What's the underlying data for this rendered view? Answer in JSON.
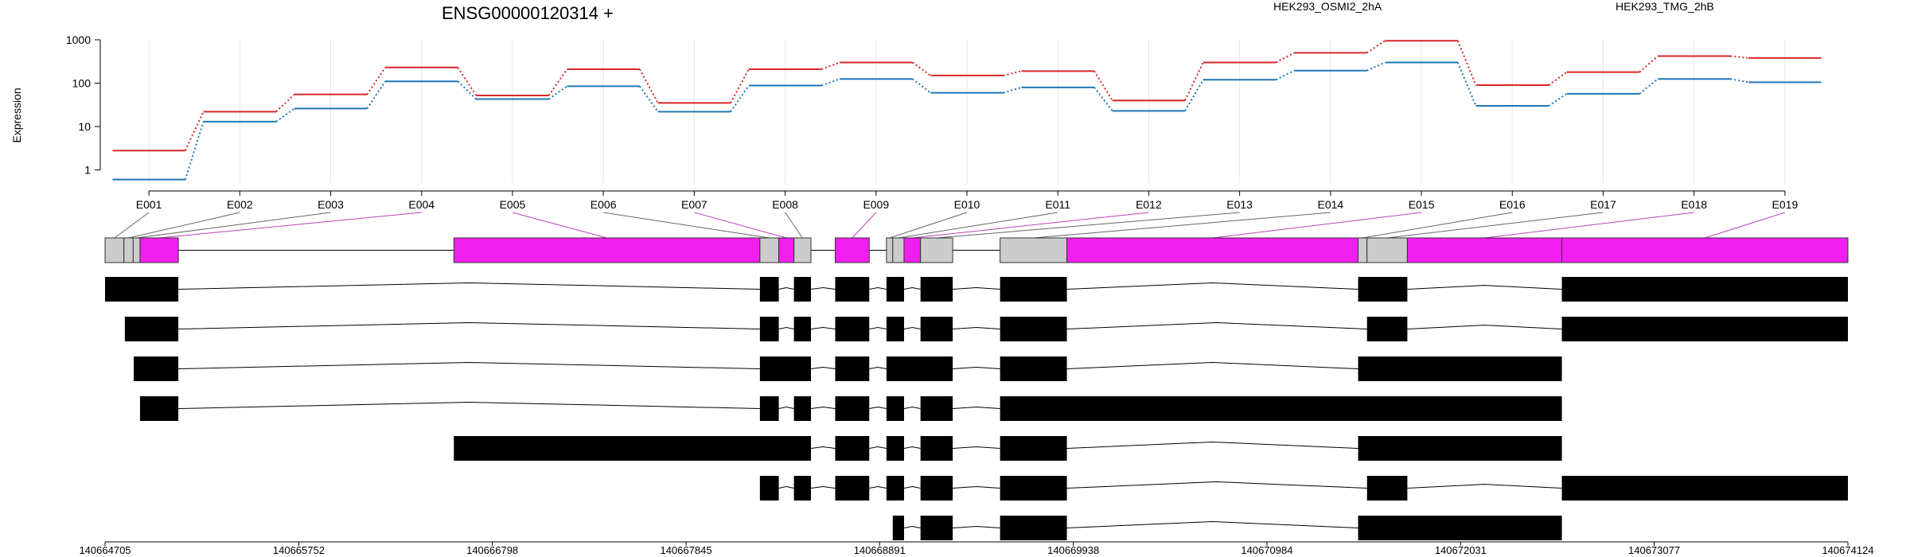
{
  "title": "ENSG00000120314 +",
  "ylabel": "Expression",
  "legend": [
    {
      "name": "HEK293_OSMI2_2hA",
      "color": "#d62728"
    },
    {
      "name": "HEK293_TMG_2hB",
      "color": "#1f77b4"
    }
  ],
  "colors": {
    "variable_exon": "#f01ff0",
    "constant_exon": "#cccccc",
    "transcript": "#000000"
  },
  "chart_data": {
    "type": "line",
    "yscale": "log",
    "ylim": [
      0.5,
      1000
    ],
    "yticks": [
      "1",
      "10",
      "100",
      "1000"
    ],
    "categories": [
      "E001",
      "E002",
      "E003",
      "E004",
      "E005",
      "E006",
      "E007",
      "E008",
      "E009",
      "E010",
      "E011",
      "E012",
      "E013",
      "E014",
      "E015",
      "E016",
      "E017",
      "E018",
      "E019"
    ],
    "series": [
      {
        "name": "HEK293_OSMI2_2hA",
        "values": [
          2.8,
          22,
          55,
          230,
          52,
          210,
          35,
          210,
          300,
          150,
          190,
          40,
          300,
          500,
          950,
          90,
          180,
          420,
          380
        ]
      },
      {
        "name": "HEK293_TMG_2hB",
        "values": [
          0.6,
          13,
          26,
          110,
          43,
          85,
          22,
          88,
          125,
          60,
          80,
          23,
          120,
          195,
          300,
          30,
          57,
          125,
          105
        ]
      }
    ],
    "xrange": [
      140664705,
      140674124
    ],
    "genomic_ticks": [
      "140664705",
      "140665752",
      "140666798",
      "140667845",
      "140668891",
      "140669938",
      "140670984",
      "140672031",
      "140673077",
      "140674124"
    ],
    "exons": [
      {
        "id": "E001",
        "start": 140664705,
        "end": 140664807,
        "variable": false
      },
      {
        "id": "E002",
        "start": 140664807,
        "end": 140664857,
        "variable": false
      },
      {
        "id": "E003",
        "start": 140664857,
        "end": 140664894,
        "variable": false
      },
      {
        "id": "E004",
        "start": 140664894,
        "end": 140665101,
        "variable": true
      },
      {
        "id": "E005",
        "start": 140666590,
        "end": 140668244,
        "variable": true
      },
      {
        "id": "E006",
        "start": 140668244,
        "end": 140668346,
        "variable": false
      },
      {
        "id": "E007",
        "start": 140668346,
        "end": 140668428,
        "variable": true
      },
      {
        "id": "E008",
        "start": 140668428,
        "end": 140668520,
        "variable": false
      },
      {
        "id": "E009",
        "start": 140668651,
        "end": 140668835,
        "variable": true
      },
      {
        "id": "E010",
        "start": 140668928,
        "end": 140668962,
        "variable": false
      },
      {
        "id": "E011",
        "start": 140668962,
        "end": 140669023,
        "variable": false
      },
      {
        "id": "E012",
        "start": 140669023,
        "end": 140669112,
        "variable": true
      },
      {
        "id": "E013",
        "start": 140669112,
        "end": 140669286,
        "variable": false
      },
      {
        "id": "E014",
        "start": 140669542,
        "end": 140669903,
        "variable": false
      },
      {
        "id": "E015",
        "start": 140669903,
        "end": 140671477,
        "variable": true
      },
      {
        "id": "E016",
        "start": 140671477,
        "end": 140671525,
        "variable": false
      },
      {
        "id": "E017",
        "start": 140671525,
        "end": 140671743,
        "variable": false
      },
      {
        "id": "E018",
        "start": 140671743,
        "end": 140672578,
        "variable": true
      },
      {
        "id": "E019",
        "start": 140672578,
        "end": 140674124,
        "variable": true
      }
    ],
    "transcripts": [
      [
        [
          140664705,
          140665101
        ],
        [
          140668244,
          140668346
        ],
        [
          140668428,
          140668520
        ],
        [
          140668651,
          140668835
        ],
        [
          140668928,
          140669023
        ],
        [
          140669112,
          140669286
        ],
        [
          140669542,
          140669903
        ],
        [
          140671477,
          140671743
        ],
        [
          140672578,
          140674124
        ]
      ],
      [
        [
          140664812,
          140665101
        ],
        [
          140668244,
          140668346
        ],
        [
          140668428,
          140668520
        ],
        [
          140668651,
          140668835
        ],
        [
          140668928,
          140669023
        ],
        [
          140669112,
          140669286
        ],
        [
          140669542,
          140669903
        ],
        [
          140671525,
          140671743
        ],
        [
          140672578,
          140674124
        ]
      ],
      [
        [
          140664860,
          140665101
        ],
        [
          140668244,
          140668520
        ],
        [
          140668651,
          140668835
        ],
        [
          140668928,
          140669286
        ],
        [
          140669542,
          140669903
        ],
        [
          140671477,
          140672578
        ]
      ],
      [
        [
          140664894,
          140665101
        ],
        [
          140668244,
          140668346
        ],
        [
          140668428,
          140668520
        ],
        [
          140668651,
          140668835
        ],
        [
          140668928,
          140669023
        ],
        [
          140669112,
          140669286
        ],
        [
          140669542,
          140672578
        ]
      ],
      [
        [
          140666590,
          140668520
        ],
        [
          140668651,
          140668835
        ],
        [
          140668928,
          140669023
        ],
        [
          140669112,
          140669286
        ],
        [
          140669542,
          140669903
        ],
        [
          140671477,
          140672578
        ]
      ],
      [
        [
          140668244,
          140668346
        ],
        [
          140668428,
          140668520
        ],
        [
          140668651,
          140668835
        ],
        [
          140668928,
          140669023
        ],
        [
          140669112,
          140669286
        ],
        [
          140669542,
          140669903
        ],
        [
          140671525,
          140671743
        ],
        [
          140672578,
          140674124
        ]
      ],
      [
        [
          140668962,
          140669023
        ],
        [
          140669112,
          140669286
        ],
        [
          140669542,
          140669903
        ],
        [
          140671477,
          140672578
        ]
      ]
    ]
  }
}
